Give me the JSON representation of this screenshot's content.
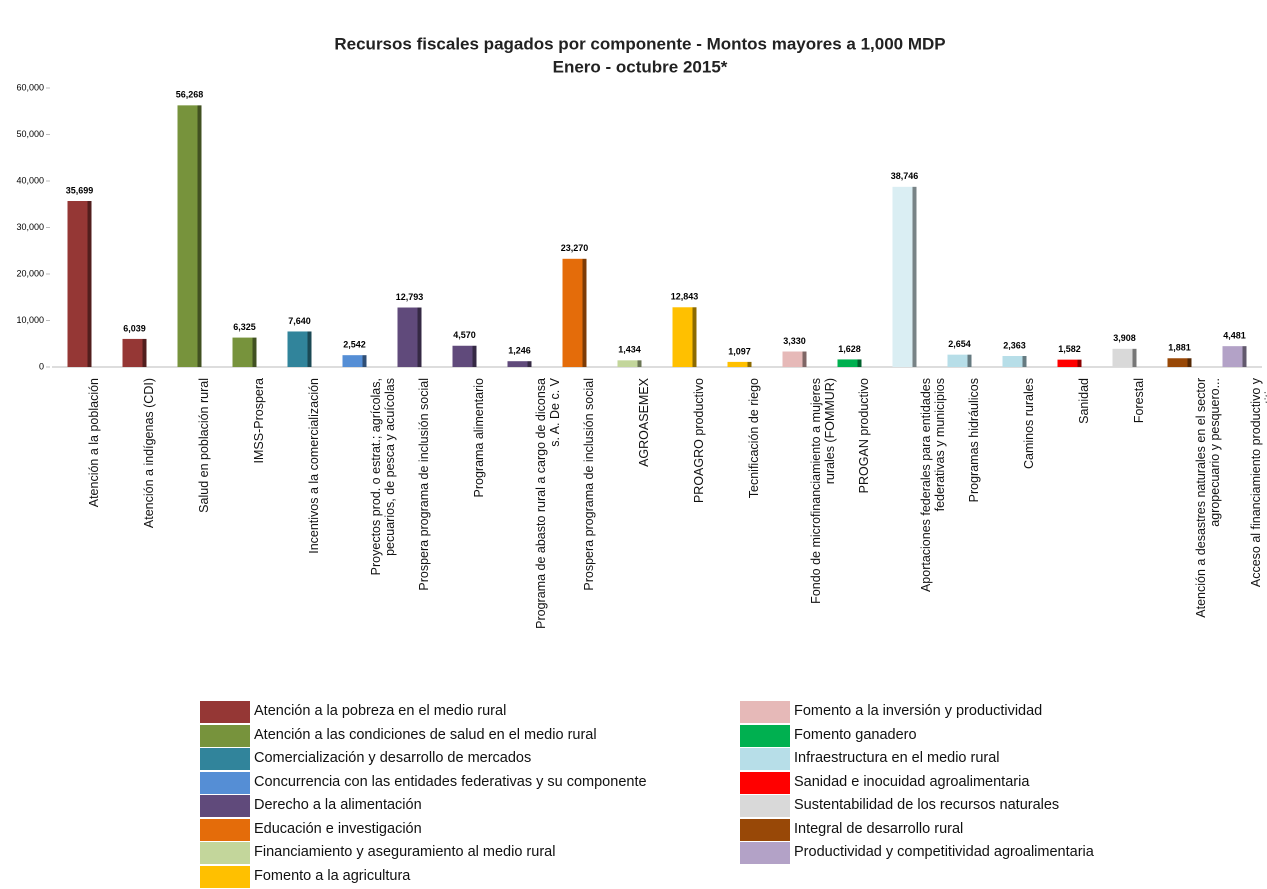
{
  "chart_data": {
    "type": "bar",
    "title": "Recursos fiscales pagados por componente - Montos mayores a 1,000 MDP",
    "subtitle": "Enero - octubre 2015*",
    "categories": [
      "Atención a la población",
      "Atención a indígenas (CDI)",
      "Salud en población rural",
      "IMSS-Prospera",
      "Incentivos a la comercialización",
      "Proyectos prod. o estrat.; agrícolas, pecuarios, de pesca y acuícolas",
      "Prospera programa de inclusión social",
      "Programa alimentario",
      "Programa de abasto rural a cargo de diconsa s. A. De c. V",
      "Prospera programa de inclusión social",
      "AGROASEMEX",
      "PROAGRO productivo",
      "Tecnificación de riego",
      "Fondo de microfinanciamiento a mujeres rurales (FOMMUR)",
      "PROGAN productivo",
      "Aportaciones federales para entidades federativas y municipios",
      "Programas hidráulicos",
      "Caminos rurales",
      "Sanidad",
      "Forestal",
      "Atención a desastres naturales en el sector agropecuario y pesquero...",
      "Acceso al financiamiento productivo y competitivo"
    ],
    "values": [
      35699,
      6039,
      56268,
      6325,
      7640,
      2542,
      12793,
      4570,
      1246,
      23270,
      1434,
      12843,
      1097,
      3330,
      1628,
      38746,
      2654,
      2363,
      1582,
      3908,
      1881,
      4481
    ],
    "value_labels": [
      "35,699",
      "6,039",
      "56,268",
      "6,325",
      "7,640",
      "2,542",
      "12,793",
      "4,570",
      "1,246",
      "23,270",
      "1,434",
      "12,843",
      "1,097",
      "3,330",
      "1,628",
      "38,746",
      "2,654",
      "2,363",
      "1,582",
      "3,908",
      "1,881",
      "4,481"
    ],
    "colors": [
      "#953735",
      "#953735",
      "#77933c",
      "#77933c",
      "#31849b",
      "#558ed5",
      "#604a7b",
      "#604a7b",
      "#604a7b",
      "#e46c0a",
      "#c3d69b",
      "#ffc000",
      "#ffc000",
      "#e6b9b8",
      "#00b050",
      "#daeef3",
      "#b7dee8",
      "#b7dee8",
      "#ff0000",
      "#d9d9d9",
      "#984807",
      "#b3a2c7"
    ],
    "ylim": [
      0,
      60000
    ],
    "yticks": [
      0,
      {
        "value": 10000,
        "label": "10,000"
      },
      {
        "value": 20000,
        "label": "20,000"
      },
      {
        "value": 30000,
        "label": "30,000"
      },
      {
        "value": 40000,
        "label": "40,000"
      },
      {
        "value": 50000,
        "label": "50,000"
      },
      {
        "value": 60000,
        "label": "60,000"
      }
    ],
    "legend": [
      {
        "name": "Atención a la pobreza en el medio rural",
        "color": "#953735"
      },
      {
        "name": "Atención a las condiciones de salud en el medio rural",
        "color": "#77933c"
      },
      {
        "name": "Comercialización y desarrollo de mercados",
        "color": "#31849b"
      },
      {
        "name": "Concurrencia con las entidades federativas y su componente",
        "color": "#558ed5"
      },
      {
        "name": "Derecho a la alimentación",
        "color": "#604a7b"
      },
      {
        "name": "Educación e investigación",
        "color": "#e46c0a"
      },
      {
        "name": "Financiamiento y aseguramiento al medio rural",
        "color": "#c3d69b"
      },
      {
        "name": "Fomento a la agricultura",
        "color": "#ffc000"
      },
      {
        "name": "Fomento a la inversión y productividad",
        "color": "#e6b9b8"
      },
      {
        "name": "Fomento ganadero",
        "color": "#00b050"
      },
      {
        "name": "Infraestructura en el medio rural",
        "color": "#b7dee8"
      },
      {
        "name": "Sanidad e inocuidad agroalimentaria",
        "color": "#ff0000"
      },
      {
        "name": "Sustentabilidad de los recursos naturales",
        "color": "#d9d9d9"
      },
      {
        "name": "Integral de desarrollo rural",
        "color": "#984807"
      },
      {
        "name": "Productividad y competitividad agroalimentaria",
        "color": "#b3a2c7"
      }
    ]
  }
}
